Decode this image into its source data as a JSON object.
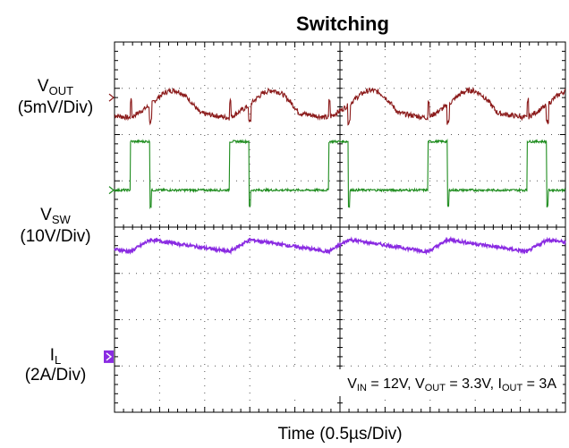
{
  "chart_data": {
    "type": "line",
    "title": "Switching",
    "xlabel": "Time (0.5µs/Div)",
    "x_div": 10,
    "y_div": 8,
    "grid": true,
    "colors": {
      "vout": "#8b1a1a",
      "vsw": "#1e8c1e",
      "il": "#8a2be2"
    },
    "channels": [
      {
        "id": "vout",
        "label_main": "V",
        "label_sub": "OUT",
        "scale": "(5mV/Div)",
        "marker": "outline",
        "baseline_div": 6.8
      },
      {
        "id": "vsw",
        "label_main": "V",
        "label_sub": "SW",
        "scale": "(10V/Div)",
        "marker": "outline",
        "baseline_div": 4.8
      },
      {
        "id": "il",
        "label_main": "I",
        "label_sub": "L",
        "scale": "(2A/Div)",
        "marker": "filled",
        "baseline_div": 1.2
      }
    ],
    "switching": {
      "period_div": 2.2,
      "on_time_div": 0.45,
      "first_edge_div": 0.35
    },
    "conditions": {
      "vin_main": "V",
      "vin_sub": "IN",
      "vin_value": " = 12V, ",
      "vout_main": "V",
      "vout_sub": "OUT",
      "vout_value": " = 3.3V, ",
      "iout_main": "I",
      "iout_sub": "OUT",
      "iout_value": " = 3A"
    }
  }
}
